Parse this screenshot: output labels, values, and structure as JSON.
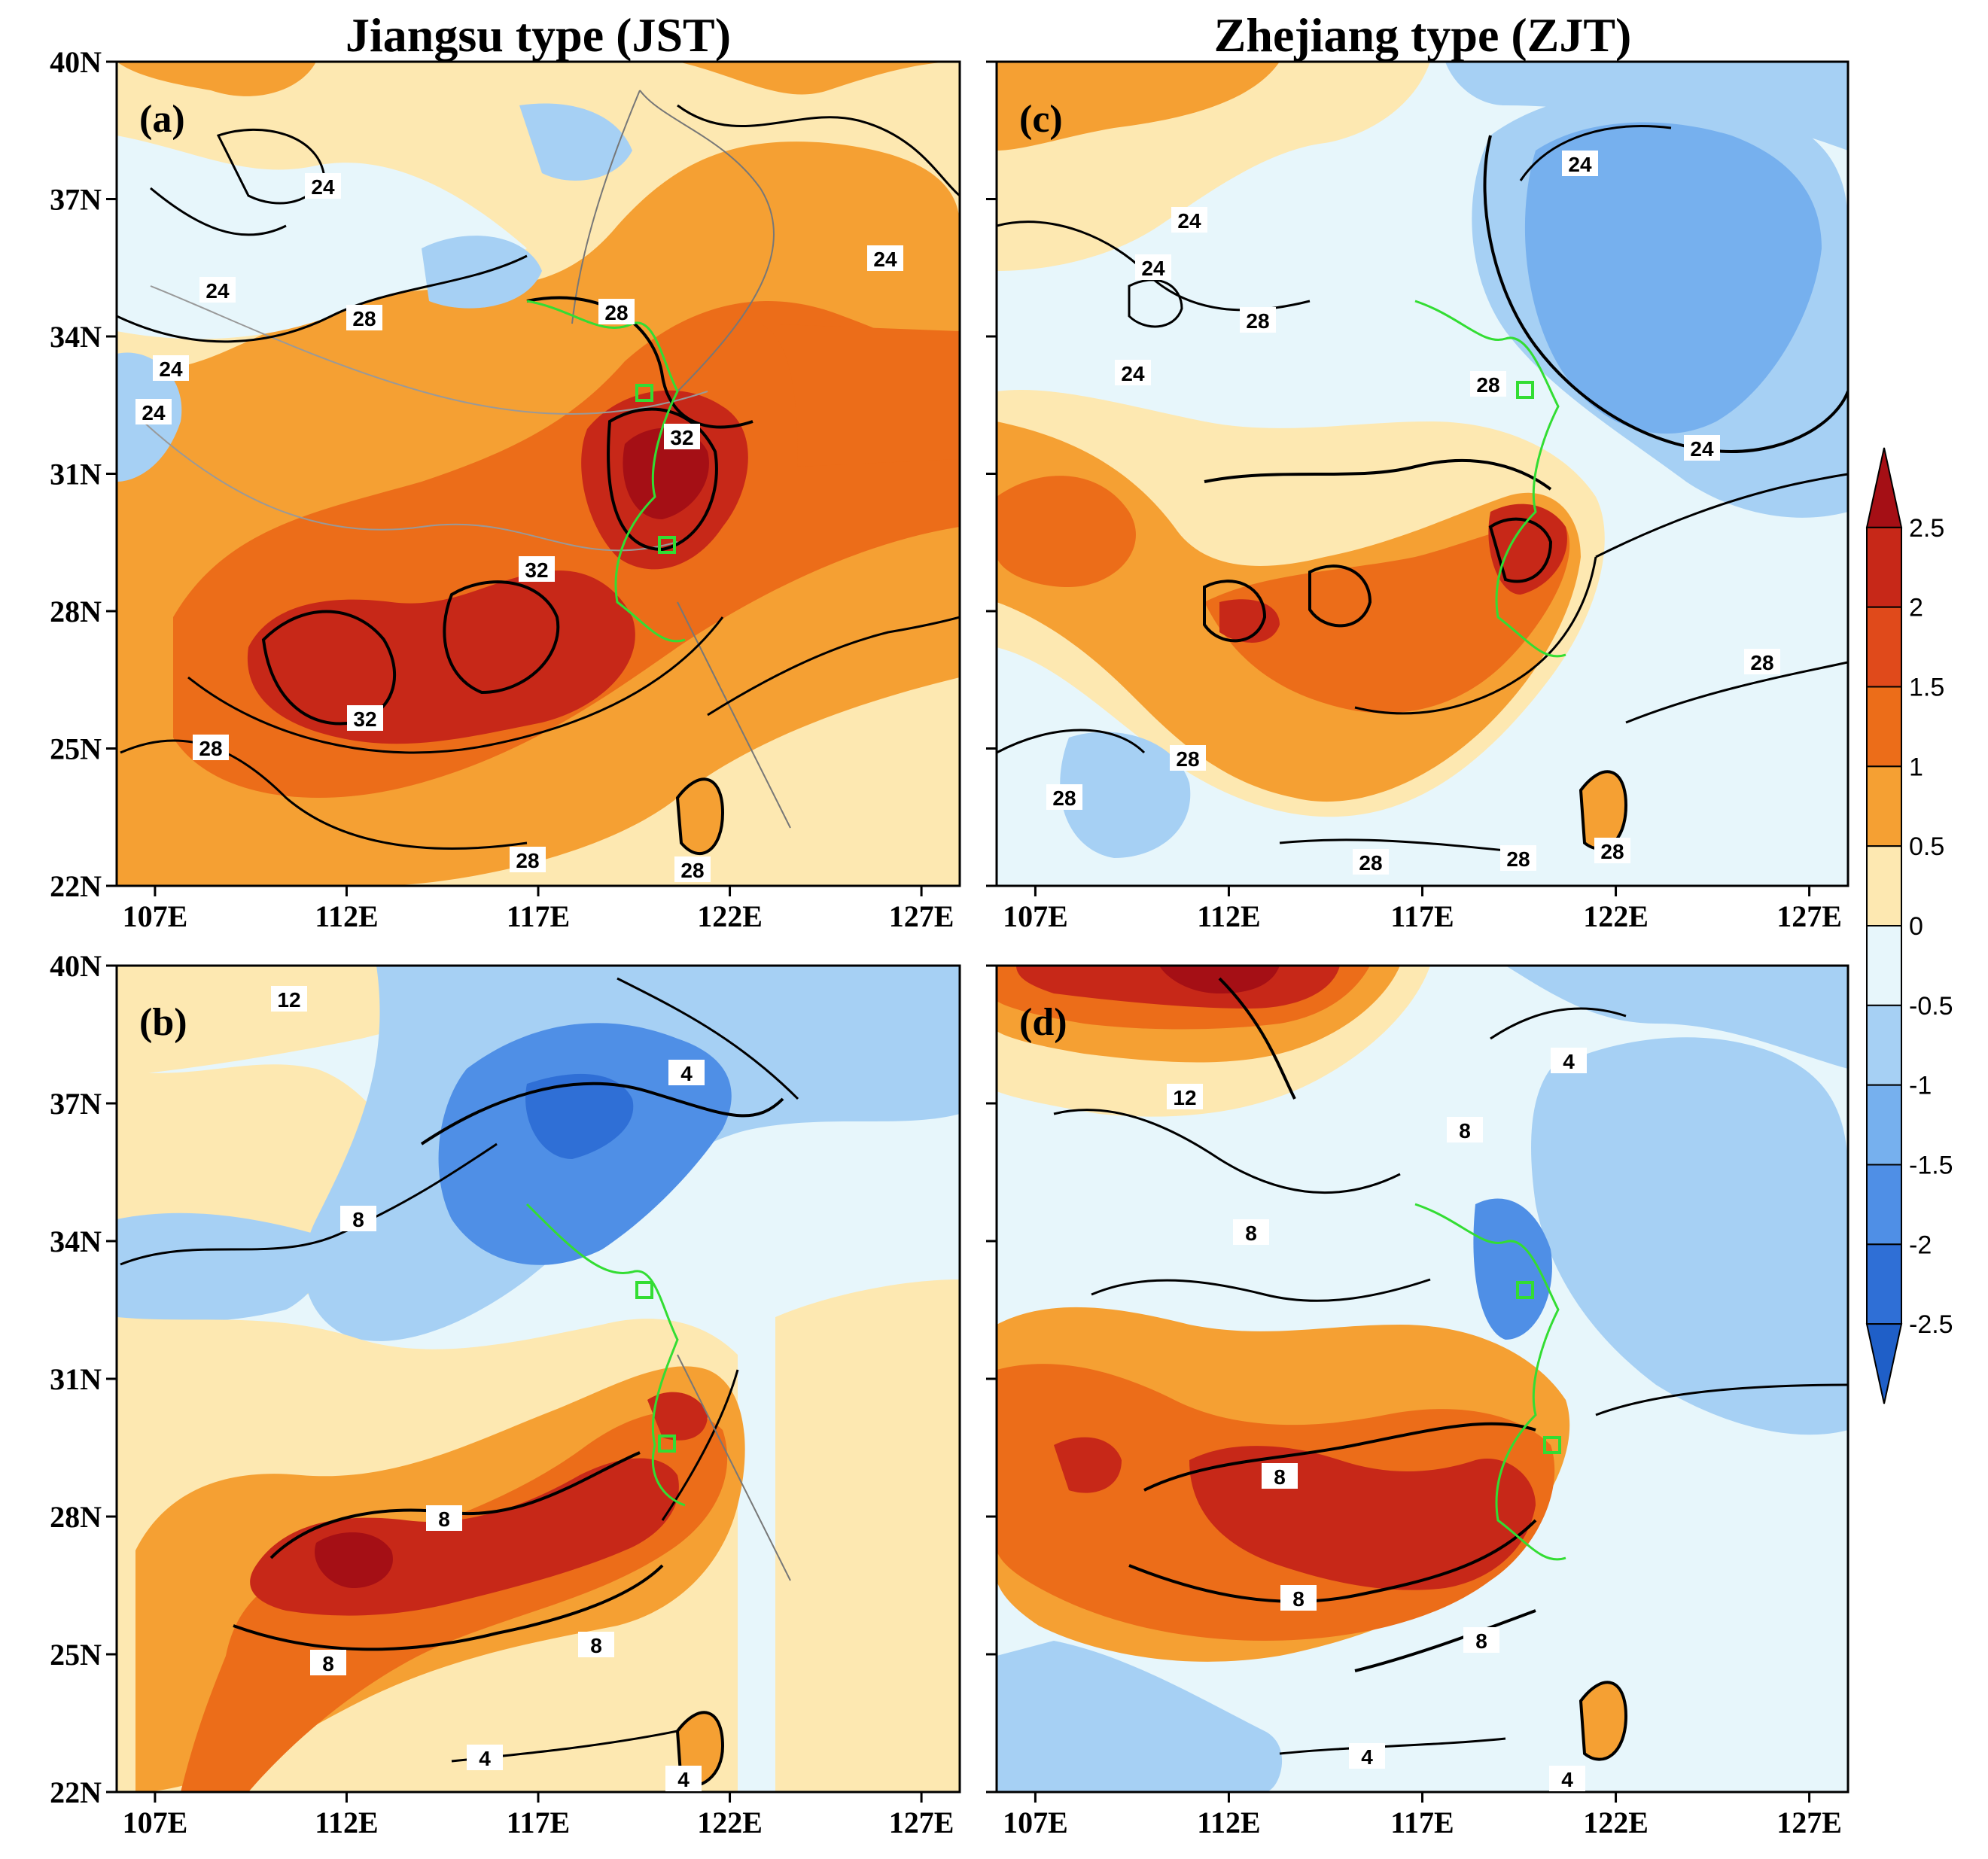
{
  "figure": {
    "column_titles": [
      "Jiangsu type (JST)",
      "Zhejiang type (ZJT)"
    ],
    "lat_ticks": [
      "22N",
      "25N",
      "28N",
      "31N",
      "34N",
      "37N",
      "40N"
    ],
    "lon_ticks": [
      "107E",
      "112E",
      "117E",
      "122E",
      "127E"
    ]
  },
  "panels": [
    {
      "id": "a",
      "label": "(a)",
      "contour_labels": [
        "24",
        "24",
        "24",
        "24",
        "24",
        "28",
        "28",
        "32",
        "32",
        "32",
        "28",
        "28",
        "28"
      ],
      "colors": [
        "#f5a033",
        "#ec6d19",
        "#c72818",
        "#fde8b1"
      ]
    },
    {
      "id": "b",
      "label": "(b)",
      "contour_labels": [
        "12",
        "4",
        "8",
        "8",
        "8",
        "8",
        "4",
        "4"
      ],
      "colors": [
        "#a6d0f4",
        "#4f8fe6",
        "#ec6d19",
        "#c72818"
      ]
    },
    {
      "id": "c",
      "label": "(c)",
      "contour_labels": [
        "24",
        "24",
        "24",
        "24",
        "28",
        "28",
        "24",
        "28",
        "28",
        "28",
        "28",
        "28",
        "28"
      ],
      "colors": [
        "#a6d0f4",
        "#4f8fe6",
        "#f5a033",
        "#ec6d19"
      ]
    },
    {
      "id": "d",
      "label": "(d)",
      "contour_labels": [
        "4",
        "12",
        "8",
        "8",
        "8",
        "8",
        "8",
        "4",
        "4"
      ],
      "colors": [
        "#c72818",
        "#a6d0f4",
        "#4f8fe6",
        "#ec6d19"
      ]
    }
  ],
  "colorbar": {
    "labels": [
      "2.5",
      "2",
      "1.5",
      "1",
      "0.5",
      "0",
      "-0.5",
      "-1",
      "-1.5",
      "-2",
      "-2.5"
    ],
    "colors": [
      "#a50f15",
      "#c72818",
      "#e04a1b",
      "#ec6d19",
      "#f5a033",
      "#fde8b1",
      "#e7f6fb",
      "#a6d0f4",
      "#76b0ee",
      "#4f8fe6",
      "#2f6fd6",
      "#1f5fc8"
    ]
  }
}
